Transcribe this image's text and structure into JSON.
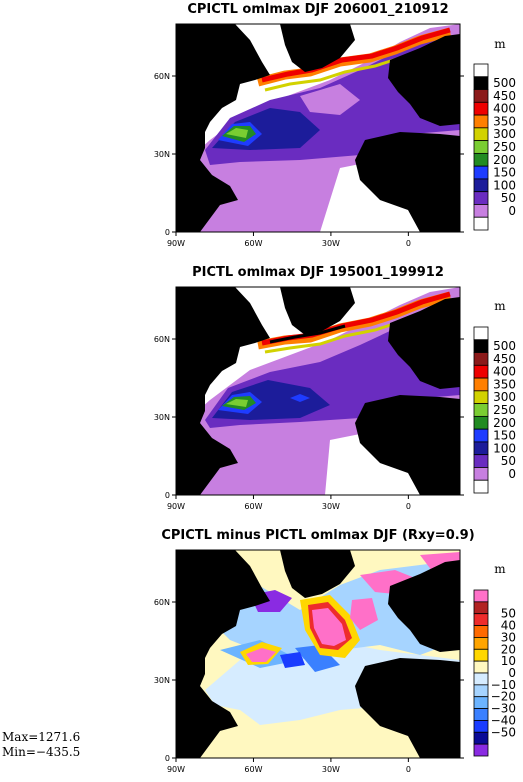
{
  "panels": [
    {
      "title": "CPICTL omlmax DJF 206001_210912",
      "unit": "m",
      "colorbar": {
        "labels": [
          "500",
          "450",
          "400",
          "350",
          "300",
          "250",
          "200",
          "150",
          "100",
          "50",
          "0"
        ],
        "colors": [
          "#ffffff",
          "#000000",
          "#8b1a1a",
          "#ee0000",
          "#ff7f00",
          "#d2d200",
          "#7acd32",
          "#228b22",
          "#1e3cff",
          "#1c1c9a",
          "#6a2cc0",
          "#c77fe0",
          "#ffffff"
        ]
      }
    },
    {
      "title": "PICTL omlmax DJF 195001_199912",
      "unit": "m",
      "colorbar": {
        "labels": [
          "500",
          "450",
          "400",
          "350",
          "300",
          "250",
          "200",
          "150",
          "100",
          "50",
          "0"
        ],
        "colors": [
          "#ffffff",
          "#000000",
          "#8b1a1a",
          "#ee0000",
          "#ff7f00",
          "#d2d200",
          "#7acd32",
          "#228b22",
          "#1e3cff",
          "#1c1c9a",
          "#6a2cc0",
          "#c77fe0",
          "#ffffff"
        ]
      }
    },
    {
      "title": "CPICTL minus PICTL omlmax DJF (Rxy=0.9)",
      "unit": "m",
      "colorbar": {
        "labels": [
          "50",
          "40",
          "30",
          "20",
          "10",
          "0",
          "−10",
          "−20",
          "−30",
          "−40",
          "−50"
        ],
        "colors": [
          "#ff70c8",
          "#b22222",
          "#ee2c2c",
          "#ff6a00",
          "#ffa500",
          "#ffd700",
          "#fff8c0",
          "#d6ecff",
          "#a6d4ff",
          "#6cb4ff",
          "#3a80ff",
          "#1a3cff",
          "#0a0a96",
          "#8a2be2"
        ]
      }
    }
  ],
  "axes": {
    "x_ticks": [
      "90W",
      "60W",
      "30W",
      "0"
    ],
    "y_ticks": [
      "0",
      "30N",
      "60N"
    ]
  },
  "stats": {
    "max": "Max=1271.6",
    "min": "Min=−435.5"
  },
  "chart_data": {
    "type": "heatmap",
    "region": "North Atlantic",
    "xlim": [
      -90,
      20
    ],
    "ylim": [
      0,
      80
    ],
    "x_ticks": [
      -90,
      -60,
      -30,
      0
    ],
    "y_ticks": [
      0,
      30,
      60
    ],
    "panels": [
      {
        "title": "CPICTL omlmax DJF 206001_210912",
        "unit": "m",
        "levels": [
          0,
          50,
          100,
          150,
          200,
          250,
          300,
          350,
          400,
          450,
          500
        ]
      },
      {
        "title": "PICTL omlmax DJF 195001_199912",
        "unit": "m",
        "levels": [
          0,
          50,
          100,
          150,
          200,
          250,
          300,
          350,
          400,
          450,
          500
        ]
      },
      {
        "title": "CPICTL minus PICTL omlmax DJF (Rxy=0.9)",
        "unit": "m",
        "levels": [
          -50,
          -40,
          -30,
          -20,
          -10,
          0,
          10,
          20,
          30,
          40,
          50
        ]
      }
    ],
    "max": 1271.6,
    "min": -435.5
  }
}
